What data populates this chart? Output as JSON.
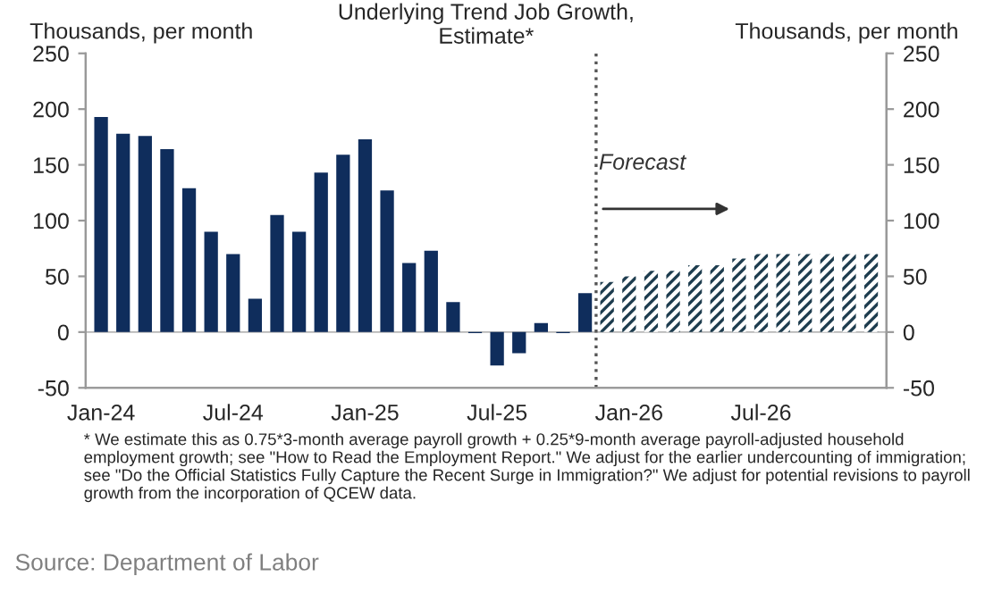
{
  "chart_data": {
    "type": "bar",
    "title": "Underlying Trend Job Growth,\nEstimate*",
    "ylabel": "Thousands, per month",
    "y2label": "Thousands, per month",
    "categories": [
      "Jan-24",
      null,
      null,
      null,
      null,
      null,
      "Jul-24",
      null,
      null,
      null,
      null,
      null,
      "Jan-25",
      null,
      null,
      null,
      null,
      null,
      "Jul-25",
      null,
      null,
      null,
      null,
      null,
      "Jan-26",
      null,
      null,
      null,
      null,
      null,
      "Jul-26",
      null,
      null,
      null,
      null,
      null
    ],
    "series": [
      {
        "color": "#0f2d5c",
        "values": [
          193,
          178,
          176,
          164,
          129,
          90,
          70,
          30,
          105,
          90,
          143,
          159,
          173,
          127,
          62,
          73,
          27,
          -1,
          -30,
          -19,
          8,
          -1,
          35,
          null,
          null,
          null,
          null,
          null,
          null,
          null,
          null,
          null,
          null,
          null,
          null,
          null
        ]
      },
      {
        "color": "#1e3d4f",
        "values": [
          null,
          null,
          null,
          null,
          null,
          null,
          null,
          null,
          null,
          null,
          null,
          null,
          null,
          null,
          null,
          null,
          null,
          null,
          null,
          null,
          null,
          null,
          null,
          45,
          50,
          55,
          55,
          60,
          60,
          66,
          70,
          70,
          70,
          70,
          70,
          70
        ]
      }
    ],
    "ylim": [
      -50,
      250
    ],
    "yticks": [
      -50,
      0,
      50,
      100,
      150,
      200,
      250
    ],
    "y2lim": [
      -50,
      250
    ],
    "y2ticks": [
      -50,
      0,
      50,
      100,
      150,
      200,
      250
    ],
    "annotations": [
      "Forecast",
      "* We estimate this as 0.75*3-month average payroll growth + 0.25*9-month average payroll-adjusted household employment growth; see \"How to Read the Employment Report.\" We adjust for the earlier undercounting of immigration; see \"Do the Official Statistics Fully Capture the Recent Surge in Immigration?\" We adjust for potential revisions to payroll growth from the incorporation of QCEW data.",
      "Source: Department of Labor"
    ],
    "grid": false
  }
}
